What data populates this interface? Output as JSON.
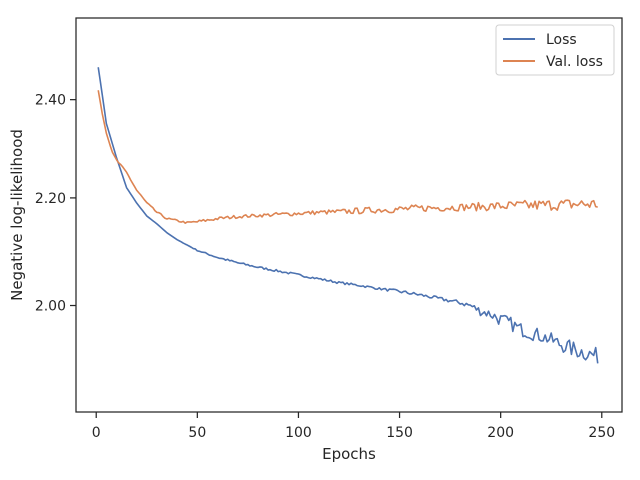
{
  "chart_data": {
    "type": "line",
    "title": "",
    "xlabel": "Epochs",
    "ylabel": "Negative log-likelihood",
    "xlim": [
      -10,
      260
    ],
    "ylim": [
      1.82,
      2.58
    ],
    "y_scale": "log",
    "x_ticks": [
      0,
      50,
      100,
      150,
      200,
      250
    ],
    "y_ticks": [
      {
        "value": 2.0,
        "label": "2.00"
      },
      {
        "value": 2.2,
        "label": "2.20"
      },
      {
        "value": 2.4,
        "label": "2.40"
      }
    ],
    "grid": false,
    "legend_position": "top-right",
    "series": [
      {
        "name": "Loss",
        "color": "#4c72b0",
        "x": [
          1,
          5,
          10,
          15,
          20,
          25,
          30,
          35,
          40,
          50,
          60,
          70,
          80,
          90,
          100,
          110,
          120,
          130,
          140,
          150,
          160,
          170,
          180,
          185,
          190,
          195,
          200,
          205,
          210,
          215,
          220,
          225,
          230,
          235,
          240,
          245,
          248
        ],
        "y": [
          2.47,
          2.35,
          2.28,
          2.22,
          2.19,
          2.165,
          2.15,
          2.133,
          2.12,
          2.1,
          2.087,
          2.077,
          2.069,
          2.062,
          2.055,
          2.048,
          2.041,
          2.036,
          2.03,
          2.025,
          2.019,
          2.012,
          2.005,
          2.0,
          1.99,
          1.985,
          1.975,
          1.968,
          1.958,
          1.952,
          1.947,
          1.94,
          1.932,
          1.925,
          1.92,
          1.915,
          1.912
        ],
        "noise": [
          0,
          0,
          0,
          0,
          0,
          0,
          0,
          0,
          0,
          0.001,
          0.002,
          0.002,
          0.002,
          0.002,
          0.002,
          0.002,
          0.002,
          0.002,
          0.002,
          0.003,
          0.003,
          0.003,
          0.004,
          0.006,
          0.008,
          0.009,
          0.012,
          0.012,
          0.012,
          0.012,
          0.012,
          0.012,
          0.013,
          0.014,
          0.014,
          0.014,
          0.014
        ]
      },
      {
        "name": "Val. loss",
        "color": "#dd8452",
        "x": [
          1,
          3,
          5,
          8,
          10,
          15,
          20,
          25,
          30,
          35,
          40,
          45,
          50,
          60,
          70,
          80,
          90,
          100,
          110,
          120,
          130,
          140,
          150,
          160,
          170,
          180,
          190,
          200,
          210,
          220,
          230,
          240,
          248
        ],
        "y": [
          2.42,
          2.37,
          2.33,
          2.29,
          2.275,
          2.25,
          2.215,
          2.19,
          2.172,
          2.16,
          2.156,
          2.152,
          2.154,
          2.16,
          2.164,
          2.166,
          2.168,
          2.17,
          2.172,
          2.173,
          2.175,
          2.177,
          2.178,
          2.18,
          2.181,
          2.182,
          2.183,
          2.184,
          2.185,
          2.186,
          2.187,
          2.188,
          2.188
        ],
        "noise": [
          0,
          0,
          0,
          0.001,
          0.002,
          0.002,
          0.002,
          0.002,
          0.002,
          0.002,
          0.002,
          0.002,
          0.003,
          0.003,
          0.003,
          0.003,
          0.004,
          0.004,
          0.004,
          0.005,
          0.006,
          0.006,
          0.007,
          0.007,
          0.007,
          0.007,
          0.008,
          0.009,
          0.01,
          0.011,
          0.011,
          0.012,
          0.012
        ]
      }
    ]
  }
}
